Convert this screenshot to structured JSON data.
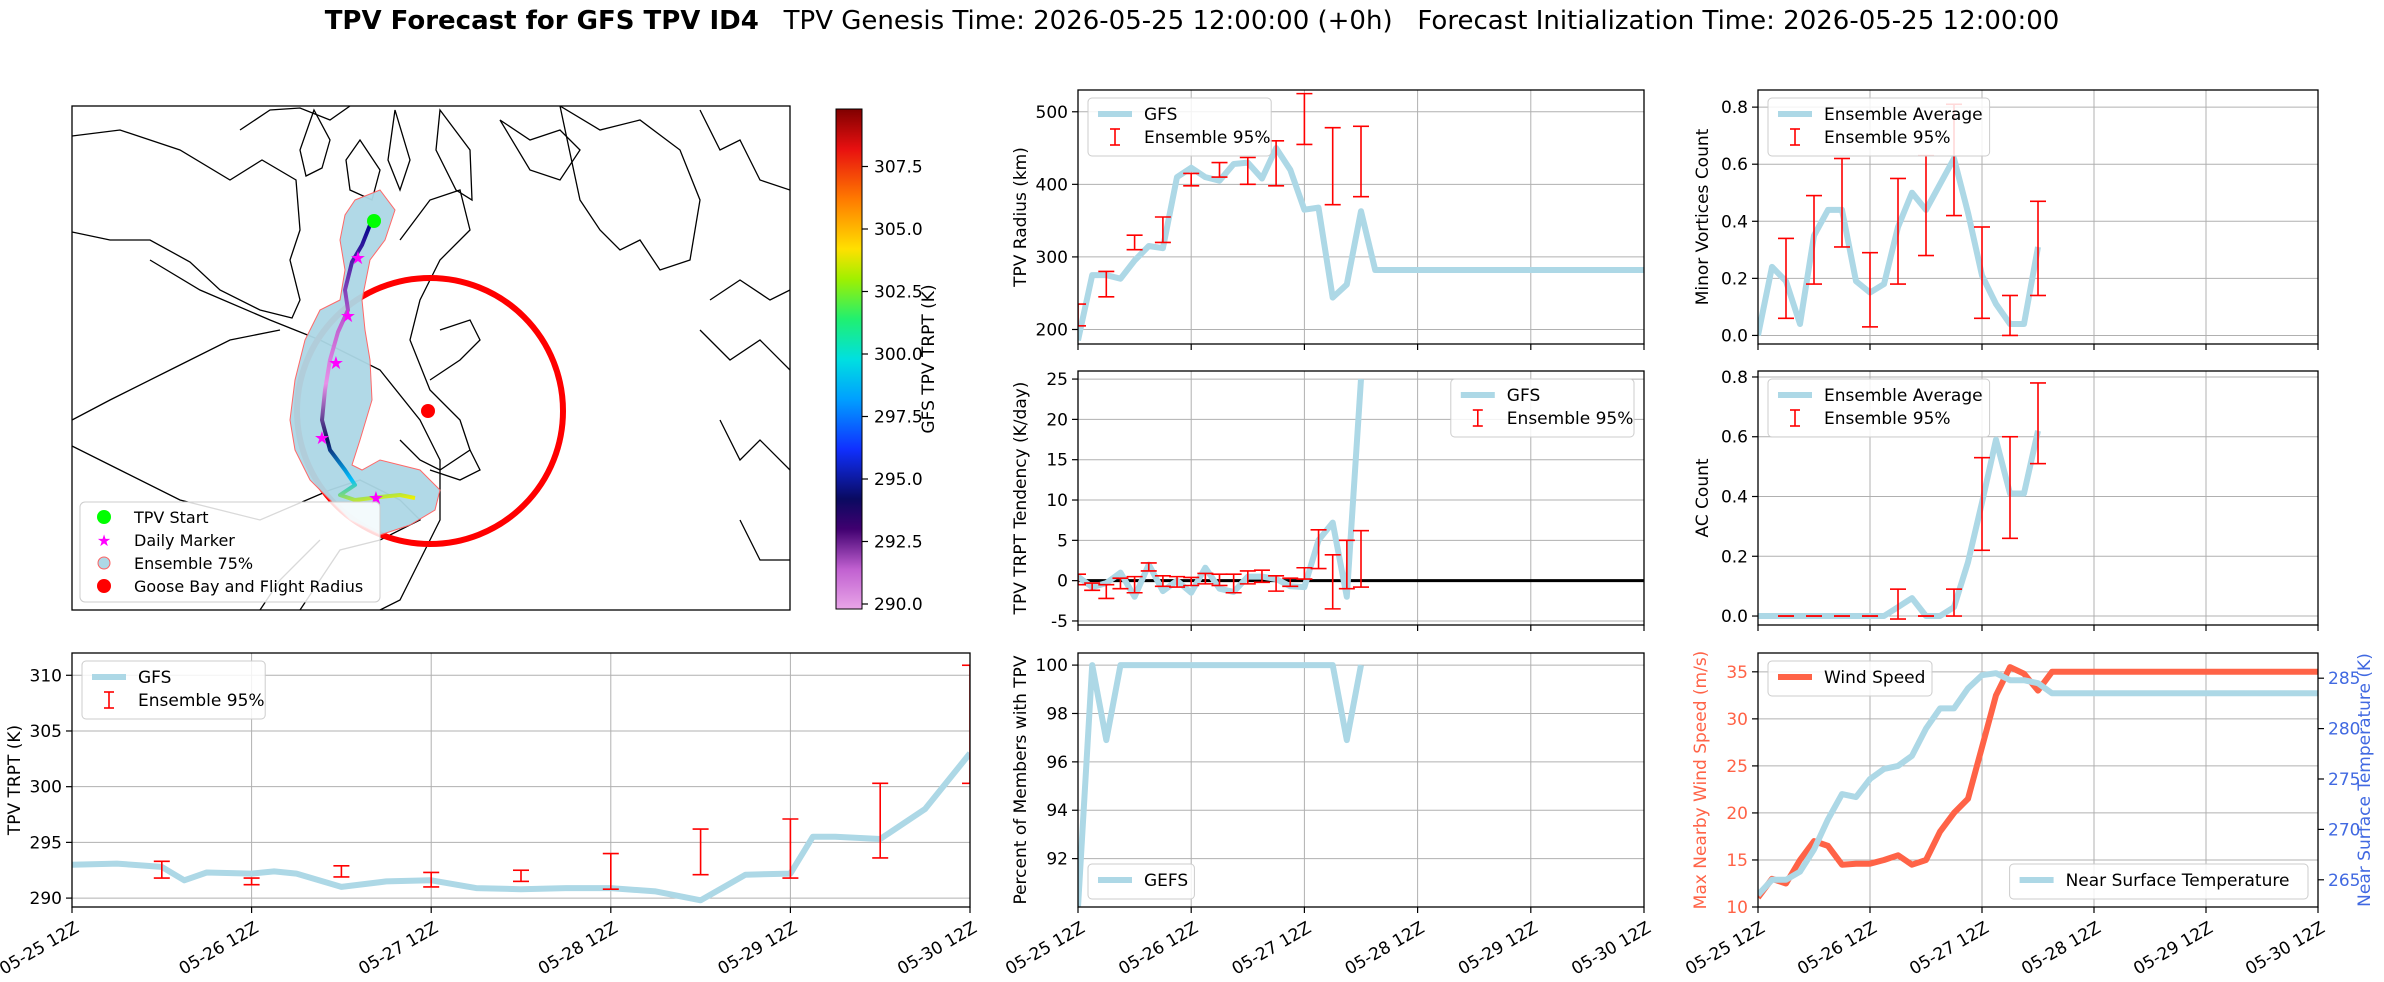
{
  "title": {
    "bold": "TPV Forecast for GFS TPV ID4",
    "genesis": "TPV Genesis Time: 2026-05-25 12:00:00 (+0h)",
    "init": "Forecast Initialization Time: 2026-05-25 12:00:00"
  },
  "colors": {
    "gfs_line": "#add8e6",
    "ensemble_err": "#ff0000",
    "wind": "#ff6347",
    "temp_axis": "#4169e1",
    "grid": "#b0b0b0"
  },
  "time_ticks": [
    "05-25 12Z",
    "05-26 12Z",
    "05-27 12Z",
    "05-28 12Z",
    "05-29 12Z",
    "05-30 12Z"
  ],
  "map": {
    "legend": [
      "TPV Start",
      "Daily Marker",
      "Ensemble 75%",
      "Goose Bay and Flight Radius"
    ],
    "colorbar_label": "GFS TPV TRPT (K)",
    "colorbar_ticks": [
      307.5,
      305.0,
      302.5,
      300.0,
      297.5,
      295.0,
      292.5,
      290.0
    ],
    "colorbar_range": [
      289.8,
      309.8
    ]
  },
  "chart_data": [
    {
      "id": "radius",
      "type": "line",
      "ylabel": "TPV Radius (km)",
      "ylim": [
        180,
        530
      ],
      "yticks": [
        200,
        300,
        400,
        500
      ],
      "xlim": [
        0,
        5
      ],
      "legend": [
        "GFS",
        "Ensemble 95%"
      ],
      "legend_pos": "top-left",
      "series": [
        {
          "name": "GFS",
          "x": [
            0,
            0.125,
            0.25,
            0.375,
            0.5,
            0.625,
            0.75,
            0.875,
            1,
            1.125,
            1.25,
            1.375,
            1.5,
            1.625,
            1.75,
            1.875,
            2,
            2.125,
            2.25,
            2.375,
            2.5,
            2.625,
            2.75,
            2.875,
            3,
            3.125,
            3.25,
            3.375,
            3.5,
            3.625,
            3.75,
            3.875,
            4,
            4.125,
            4.25,
            4.375,
            4.5,
            4.625,
            4.75,
            4.875,
            5
          ],
          "y": [
            185,
            275,
            275,
            270,
            295,
            315,
            312,
            410,
            423,
            410,
            405,
            428,
            430,
            408,
            450,
            420,
            365,
            368,
            244,
            262,
            363,
            282,
            282,
            282,
            282,
            282,
            282,
            282,
            282,
            282,
            282,
            282,
            282,
            282,
            282,
            282,
            282,
            282,
            282,
            282,
            282
          ]
        }
      ],
      "errorbars": [
        {
          "x": 0,
          "lo": 205,
          "hi": 235
        },
        {
          "x": 0.25,
          "lo": 245,
          "hi": 280
        },
        {
          "x": 0.5,
          "lo": 310,
          "hi": 330
        },
        {
          "x": 0.75,
          "lo": 320,
          "hi": 355
        },
        {
          "x": 1,
          "lo": 398,
          "hi": 415
        },
        {
          "x": 1.25,
          "lo": 410,
          "hi": 430
        },
        {
          "x": 1.5,
          "lo": 400,
          "hi": 437
        },
        {
          "x": 1.75,
          "lo": 398,
          "hi": 460
        },
        {
          "x": 2,
          "lo": 455,
          "hi": 525
        },
        {
          "x": 2.25,
          "lo": 372,
          "hi": 478
        },
        {
          "x": 2.5,
          "lo": 383,
          "hi": 480
        }
      ]
    },
    {
      "id": "tendency",
      "type": "line",
      "ylabel": "TPV TRPT Tendency (K/day)",
      "ylim": [
        -5.5,
        26
      ],
      "yticks": [
        -5,
        0,
        5,
        10,
        15,
        20,
        25
      ],
      "xlim": [
        0,
        5
      ],
      "legend": [
        "GFS",
        "Ensemble 95%"
      ],
      "legend_pos": "top-right",
      "series": [
        {
          "name": "GFS",
          "x": [
            0,
            0.125,
            0.25,
            0.375,
            0.5,
            0.625,
            0.75,
            0.875,
            1,
            1.125,
            1.25,
            1.375,
            1.5,
            1.625,
            1.75,
            1.875,
            2,
            2.125,
            2.25,
            2.375,
            2.5
          ],
          "y": [
            0.5,
            -0.8,
            -0.3,
            1.0,
            -2.0,
            2.0,
            -1.3,
            0.0,
            -1.5,
            1.6,
            -1.0,
            -1.4,
            0.5,
            0.5,
            0.2,
            -0.7,
            -0.8,
            5.0,
            7.2,
            -2.0,
            25
          ]
        }
      ],
      "errorbars": [
        {
          "x": 0,
          "lo": -0.5,
          "hi": 0.8
        },
        {
          "x": 0.125,
          "lo": -1.2,
          "hi": -0.3
        },
        {
          "x": 0.25,
          "lo": -2.2,
          "hi": -0.5
        },
        {
          "x": 0.375,
          "lo": -1.0,
          "hi": 0.3
        },
        {
          "x": 0.5,
          "lo": -1.5,
          "hi": 0.5
        },
        {
          "x": 0.625,
          "lo": 1.2,
          "hi": 2.2
        },
        {
          "x": 0.75,
          "lo": -0.7,
          "hi": 0.6
        },
        {
          "x": 0.875,
          "lo": -0.8,
          "hi": 0.5
        },
        {
          "x": 1,
          "lo": -0.6,
          "hi": 0.4
        },
        {
          "x": 1.125,
          "lo": -0.4,
          "hi": 0.9
        },
        {
          "x": 1.25,
          "lo": -0.6,
          "hi": 0.8
        },
        {
          "x": 1.375,
          "lo": -1.5,
          "hi": 0.8
        },
        {
          "x": 1.5,
          "lo": -0.4,
          "hi": 1.2
        },
        {
          "x": 1.625,
          "lo": -0.2,
          "hi": 1.3
        },
        {
          "x": 1.75,
          "lo": -1.3,
          "hi": 0.6
        },
        {
          "x": 1.875,
          "lo": -0.7,
          "hi": 0.3
        },
        {
          "x": 2,
          "lo": 0.2,
          "hi": 1.6
        },
        {
          "x": 2.125,
          "lo": 1.5,
          "hi": 6.3
        },
        {
          "x": 2.25,
          "lo": -3.5,
          "hi": 3.2
        },
        {
          "x": 2.375,
          "lo": -1.0,
          "hi": 5.0
        },
        {
          "x": 2.5,
          "lo": -0.8,
          "hi": 6.2
        }
      ]
    },
    {
      "id": "members",
      "type": "line",
      "ylabel": "Percent of Members with TPV",
      "ylim": [
        90,
        100.5
      ],
      "yticks": [
        92,
        94,
        96,
        98,
        100
      ],
      "xlim": [
        0,
        5
      ],
      "legend": [
        "GEFS"
      ],
      "legend_pos": "bottom-left",
      "series": [
        {
          "name": "GEFS",
          "x": [
            0,
            0.125,
            0.25,
            0.375,
            0.5,
            0.625,
            0.75,
            0.875,
            1,
            1.125,
            1.25,
            1.375,
            1.5,
            1.625,
            1.75,
            1.875,
            2,
            2.125,
            2.25,
            2.375,
            2.5
          ],
          "y": [
            90,
            100,
            96.9,
            100,
            100,
            100,
            100,
            100,
            100,
            100,
            100,
            100,
            100,
            100,
            100,
            100,
            100,
            100,
            100,
            96.9,
            100
          ]
        }
      ]
    },
    {
      "id": "minor_vortices",
      "type": "line",
      "ylabel": "Minor Vortices Count",
      "ylim": [
        -0.03,
        0.86
      ],
      "yticks": [
        0.0,
        0.2,
        0.4,
        0.6,
        0.8
      ],
      "xlim": [
        0,
        5
      ],
      "legend": [
        "Ensemble Average",
        "Ensemble 95%"
      ],
      "legend_pos": "top-left",
      "series": [
        {
          "name": "Ensemble Average",
          "x": [
            0,
            0.125,
            0.25,
            0.375,
            0.5,
            0.625,
            0.75,
            0.875,
            1,
            1.125,
            1.25,
            1.375,
            1.5,
            1.625,
            1.75,
            1.875,
            2,
            2.125,
            2.25,
            2.375,
            2.5
          ],
          "y": [
            0.0,
            0.24,
            0.19,
            0.04,
            0.35,
            0.44,
            0.44,
            0.19,
            0.15,
            0.18,
            0.38,
            0.5,
            0.44,
            0.53,
            0.62,
            0.43,
            0.21,
            0.11,
            0.04,
            0.04,
            0.31
          ]
        }
      ],
      "errorbars": [
        {
          "x": 0.25,
          "lo": 0.06,
          "hi": 0.34
        },
        {
          "x": 0.5,
          "lo": 0.18,
          "hi": 0.49
        },
        {
          "x": 0.75,
          "lo": 0.31,
          "hi": 0.62
        },
        {
          "x": 1,
          "lo": 0.03,
          "hi": 0.29
        },
        {
          "x": 1.25,
          "lo": 0.18,
          "hi": 0.55
        },
        {
          "x": 1.5,
          "lo": 0.28,
          "hi": 0.63
        },
        {
          "x": 1.75,
          "lo": 0.42,
          "hi": 0.81
        },
        {
          "x": 2,
          "lo": 0.06,
          "hi": 0.38
        },
        {
          "x": 2.25,
          "lo": 0.0,
          "hi": 0.14
        },
        {
          "x": 2.5,
          "lo": 0.14,
          "hi": 0.47
        }
      ]
    },
    {
      "id": "ac_count",
      "type": "line",
      "ylabel": "AC Count",
      "ylim": [
        -0.03,
        0.82
      ],
      "yticks": [
        0.0,
        0.2,
        0.4,
        0.6,
        0.8
      ],
      "xlim": [
        0,
        5
      ],
      "legend": [
        "Ensemble Average",
        "Ensemble 95%"
      ],
      "legend_pos": "top-left",
      "series": [
        {
          "name": "Ensemble Average",
          "x": [
            0,
            0.125,
            0.25,
            0.375,
            0.5,
            0.625,
            0.75,
            0.875,
            1,
            1.125,
            1.25,
            1.375,
            1.5,
            1.625,
            1.75,
            1.875,
            2,
            2.125,
            2.25,
            2.375,
            2.5
          ],
          "y": [
            0,
            0,
            0,
            0,
            0,
            0,
            0,
            0,
            0,
            0,
            0.03,
            0.06,
            0,
            0,
            0.03,
            0.18,
            0.38,
            0.59,
            0.41,
            0.41,
            0.62
          ]
        }
      ],
      "errorbars": [
        {
          "x": 0.25,
          "lo": 0,
          "hi": 0
        },
        {
          "x": 0.5,
          "lo": 0,
          "hi": 0
        },
        {
          "x": 0.75,
          "lo": 0,
          "hi": 0
        },
        {
          "x": 1,
          "lo": 0,
          "hi": 0
        },
        {
          "x": 1.25,
          "lo": -0.01,
          "hi": 0.09
        },
        {
          "x": 1.5,
          "lo": 0,
          "hi": 0
        },
        {
          "x": 1.75,
          "lo": 0,
          "hi": 0.09
        },
        {
          "x": 2,
          "lo": 0.22,
          "hi": 0.53
        },
        {
          "x": 2.25,
          "lo": 0.26,
          "hi": 0.6
        },
        {
          "x": 2.5,
          "lo": 0.51,
          "hi": 0.78
        }
      ]
    },
    {
      "id": "trpt",
      "type": "line",
      "ylabel": "TPV TRPT (K)",
      "ylim": [
        289.2,
        312
      ],
      "yticks": [
        290,
        295,
        300,
        305,
        310
      ],
      "xlim": [
        0,
        5
      ],
      "legend": [
        "GFS",
        "Ensemble 95%"
      ],
      "legend_pos": "top-left",
      "series": [
        {
          "name": "GFS",
          "x": [
            0,
            0.25,
            0.5,
            0.625,
            0.75,
            1,
            1.125,
            1.25,
            1.5,
            1.75,
            2,
            2.25,
            2.5,
            2.75,
            3,
            3.25,
            3.5,
            3.75,
            4,
            4.125,
            4.25,
            4.5,
            4.75,
            5
          ],
          "y": [
            293.0,
            293.1,
            292.8,
            291.6,
            292.3,
            292.2,
            292.4,
            292.2,
            291.0,
            291.5,
            291.6,
            290.9,
            290.8,
            290.9,
            290.9,
            290.6,
            289.8,
            292.1,
            292.2,
            295.5,
            295.5,
            295.3,
            298.0,
            303.0
          ]
        }
      ],
      "errorbars": [
        {
          "x": 0.5,
          "lo": 291.8,
          "hi": 293.3
        },
        {
          "x": 1,
          "lo": 291.2,
          "hi": 291.8
        },
        {
          "x": 1.5,
          "lo": 291.9,
          "hi": 292.9
        },
        {
          "x": 2,
          "lo": 291.0,
          "hi": 292.3
        },
        {
          "x": 2.5,
          "lo": 291.5,
          "hi": 292.5
        },
        {
          "x": 3,
          "lo": 290.8,
          "hi": 294.0
        },
        {
          "x": 3.5,
          "lo": 292.1,
          "hi": 296.2
        },
        {
          "x": 4,
          "lo": 291.8,
          "hi": 297.1
        },
        {
          "x": 4.5,
          "lo": 293.6,
          "hi": 300.3
        },
        {
          "x": 5,
          "lo": 300.3,
          "hi": 310.9
        }
      ]
    },
    {
      "id": "wind_temp",
      "type": "line",
      "ylabel": "Max Nearby Wind Speed (m/s)",
      "ylabel_right": "Near Surface Temperature (K)",
      "ylim": [
        10,
        37
      ],
      "yticks": [
        10,
        15,
        20,
        25,
        30,
        35
      ],
      "ylim_right": [
        262.3,
        287.5
      ],
      "yticks_right": [
        265,
        270,
        275,
        280,
        285
      ],
      "xlim": [
        0,
        5
      ],
      "legend": [
        "Wind Speed"
      ],
      "legend_pos": "top-left",
      "legend_right": [
        "Near Surface Temperature"
      ],
      "legend_right_pos": "bottom-right",
      "series": [
        {
          "name": "Wind Speed",
          "axis": "left",
          "x": [
            0,
            0.125,
            0.25,
            0.375,
            0.5,
            0.625,
            0.75,
            0.875,
            1,
            1.125,
            1.25,
            1.375,
            1.5,
            1.625,
            1.75,
            1.875,
            2,
            2.125,
            2.25,
            2.375,
            2.5,
            2.625,
            2.75,
            2.875,
            3,
            3.125,
            3.25,
            3.375,
            3.5,
            3.625,
            3.75,
            3.875,
            4,
            4.125,
            4.25,
            4.375,
            4.5,
            4.625,
            4.75,
            4.875,
            5
          ],
          "y": [
            11,
            13,
            12.5,
            15,
            17,
            16.5,
            14.5,
            14.6,
            14.6,
            15,
            15.5,
            14.5,
            15,
            18,
            20,
            21.5,
            27,
            32.5,
            35.5,
            34.8,
            33,
            35,
            35,
            35,
            35,
            35,
            35,
            35,
            35,
            35,
            35,
            35,
            35,
            35,
            35,
            35,
            35,
            35,
            35,
            35,
            35
          ]
        },
        {
          "name": "Near Surface Temperature",
          "axis": "right",
          "x": [
            0,
            0.125,
            0.25,
            0.375,
            0.5,
            0.625,
            0.75,
            0.875,
            1,
            1.125,
            1.25,
            1.375,
            1.5,
            1.625,
            1.75,
            1.875,
            2,
            2.125,
            2.25,
            2.375,
            2.5,
            2.625,
            2.75,
            2.875,
            3,
            3.125,
            3.25,
            3.375,
            3.5,
            3.625,
            3.75,
            3.875,
            4,
            4.125,
            4.25,
            4.375,
            4.5,
            4.625,
            4.75,
            4.875,
            5
          ],
          "y": [
            263.5,
            265,
            265,
            265.8,
            268,
            271,
            273.5,
            273.2,
            275,
            276,
            276.3,
            277.3,
            280,
            282,
            282,
            284,
            285.3,
            285.5,
            284.8,
            284.8,
            284.5,
            283.5,
            283.5,
            283.5,
            283.5,
            283.5,
            283.5,
            283.5,
            283.5,
            283.5,
            283.5,
            283.5,
            283.5,
            283.5,
            283.5,
            283.5,
            283.5,
            283.5,
            283.5,
            283.5,
            283.5
          ]
        }
      ]
    }
  ]
}
